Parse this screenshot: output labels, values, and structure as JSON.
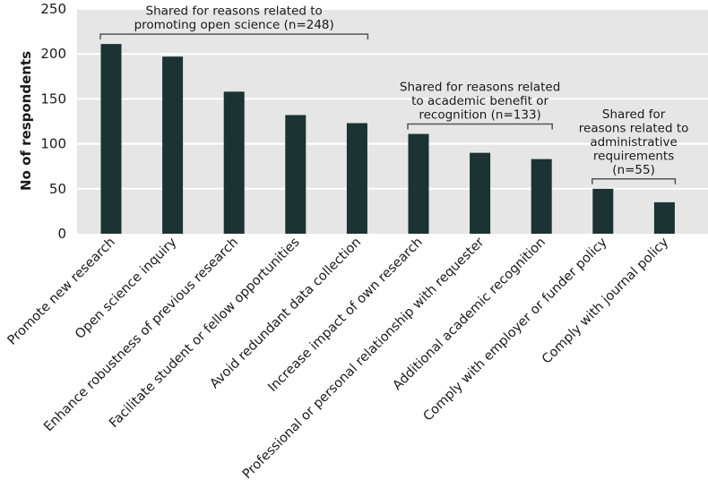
{
  "chart_data": {
    "type": "bar",
    "ylabel": "No of respondents",
    "xlabel": "",
    "ylim": [
      0,
      250
    ],
    "yticks": [
      0,
      50,
      100,
      150,
      200,
      250
    ],
    "grid": true,
    "colors": {
      "bar": "#1b3333",
      "plot_bg": "#e6e6e6",
      "grid": "#ffffff",
      "bracket": "#555555"
    },
    "categories": [
      "Promote new research",
      "Open science inquiry",
      "Enhance robustness of previous research",
      "Facilitate student or fellow opportunities",
      "Avoid redundant data collection",
      "Increase impact of own research",
      "Professional or personal relationship with requester",
      "Additional academic recognition",
      "Comply with employer or funder policy",
      "Comply with journal policy"
    ],
    "values": [
      211,
      197,
      158,
      132,
      123,
      111,
      90,
      83,
      50,
      35
    ],
    "annotations": [
      {
        "lines": [
          "Shared for reasons related to",
          "promoting open science (n=248)"
        ],
        "from": 0,
        "to": 4
      },
      {
        "lines": [
          "Shared for reasons related",
          "to academic benefit or",
          "recognition (n=133)"
        ],
        "from": 5,
        "to": 7
      },
      {
        "lines": [
          "Shared for",
          "reasons related to",
          "administrative",
          "requirements",
          "(n=55)"
        ],
        "from": 8,
        "to": 9
      }
    ]
  }
}
